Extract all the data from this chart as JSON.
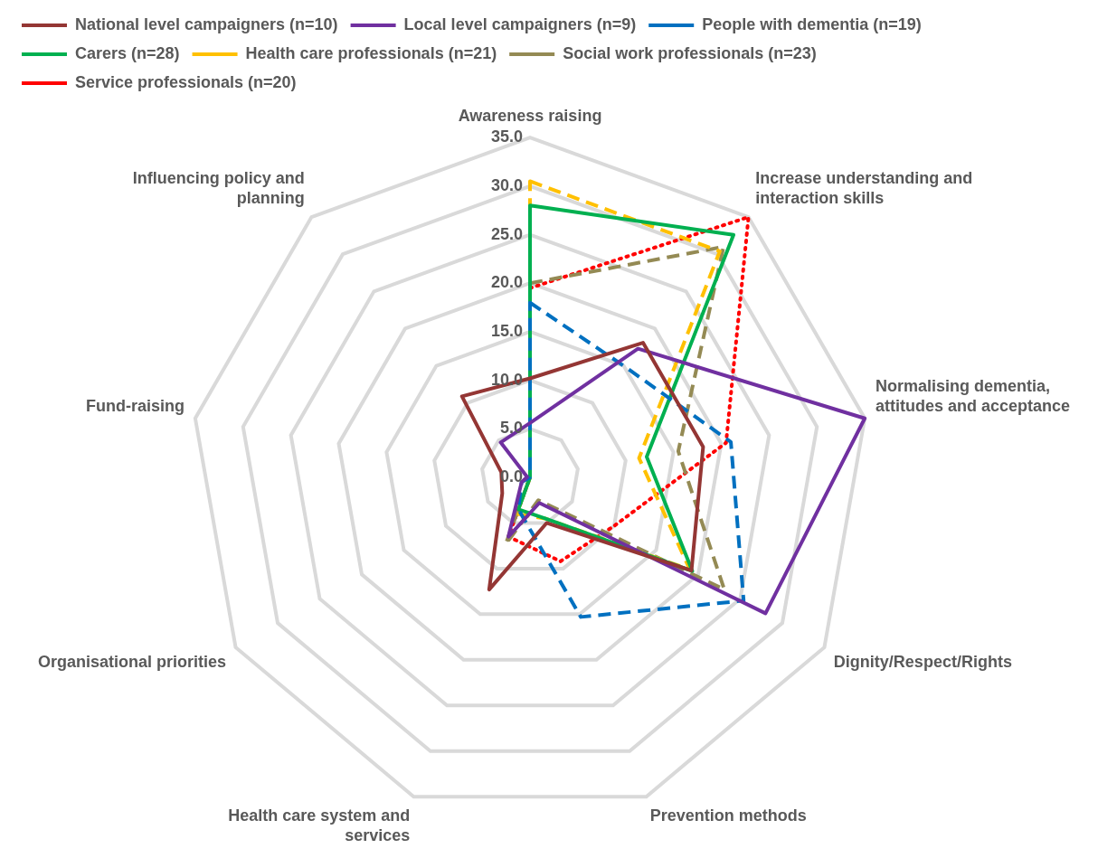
{
  "chart_data": {
    "type": "radar",
    "categories": [
      "Awareness raising",
      "Increase understanding and interaction skills",
      "Normalising dementia, attitudes and acceptance",
      "Dignity/Respect/Rights",
      "Prevention methods",
      "Health care system and services",
      "Organisational priorities",
      "Fund-raising",
      "Influencing policy and planning"
    ],
    "series": [
      {
        "name": "National level campaigners (n=10)",
        "color": "#943634",
        "line_style": "solid",
        "values": [
          10.2,
          18.1,
          18.1,
          19.2,
          5.0,
          12.3,
          3.3,
          3.0,
          10.9
        ]
      },
      {
        "name": "Local level campaigners (n=9)",
        "color": "#7030a0",
        "line_style": "solid",
        "values": [
          5.6,
          17.3,
          35.0,
          28.0,
          2.8,
          6.5,
          1.0,
          0.3,
          4.7
        ]
      },
      {
        "name": "People with dementia (n=19)",
        "color": "#0070c0",
        "line_style": "dashed",
        "values": [
          18.0,
          15.0,
          21.0,
          25.4,
          15.3,
          3.5,
          1.0,
          0.0,
          0.0
        ]
      },
      {
        "name": "Carers (n=28)",
        "color": "#00b050",
        "line_style": "solid",
        "values": [
          28.0,
          32.6,
          12.2,
          19.3,
          4.5,
          3.5,
          0.0,
          0.0,
          0.0
        ]
      },
      {
        "name": "Health care professionals (n=21)",
        "color": "#ffc000",
        "line_style": "dashed",
        "values": [
          30.5,
          30.4,
          11.4,
          19.0,
          4.5,
          4.0,
          0.0,
          0.0,
          0.0
        ]
      },
      {
        "name": "Social work professionals (n=23)",
        "color": "#948a54",
        "line_style": "dashed",
        "values": [
          20.0,
          31.0,
          15.5,
          23.1,
          2.5,
          7.3,
          0.0,
          0.0,
          0.0
        ]
      },
      {
        "name": "Service professionals (n=20)",
        "color": "#ff0000",
        "line_style": "dotted",
        "values": [
          19.5,
          35.0,
          20.5,
          10.0,
          9.2,
          6.5,
          0.0,
          0.0,
          0.0
        ]
      }
    ],
    "ylim": [
      0,
      35
    ],
    "yticks": [
      {
        "value": 0,
        "label": "0.0"
      },
      {
        "value": 5,
        "label": "5.0"
      },
      {
        "value": 10,
        "label": "10.0"
      },
      {
        "value": 15,
        "label": "15.0"
      },
      {
        "value": 20,
        "label": "20.0"
      },
      {
        "value": 25,
        "label": "25.0"
      },
      {
        "value": 30,
        "label": "30.0"
      },
      {
        "value": 35,
        "label": "35.0"
      }
    ],
    "grid": true,
    "legend": "top",
    "marker": "none"
  }
}
